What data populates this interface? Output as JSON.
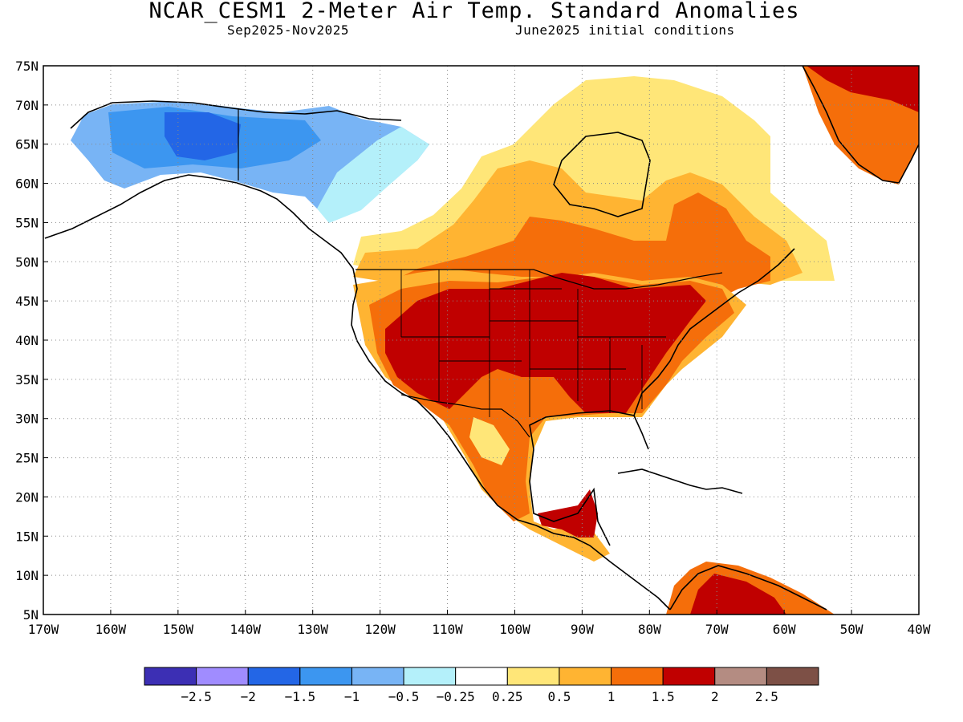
{
  "title": "NCAR_CESM1 2-Meter Air Temp. Standard Anomalies",
  "subtitle_left": "Sep2025-Nov2025",
  "subtitle_right": "June2025 initial conditions",
  "map": {
    "lon_range": [
      -170,
      -40
    ],
    "lat_range": [
      5,
      75
    ],
    "lat_ticks": [
      "75N",
      "70N",
      "65N",
      "60N",
      "55N",
      "50N",
      "45N",
      "40N",
      "35N",
      "30N",
      "25N",
      "20N",
      "15N",
      "10N",
      "5N"
    ],
    "lon_ticks": [
      "170W",
      "160W",
      "150W",
      "140W",
      "130W",
      "120W",
      "110W",
      "100W",
      "90W",
      "80W",
      "70W",
      "60W",
      "50W",
      "40W"
    ],
    "grid": "dotted"
  },
  "legend": {
    "colors": [
      "#3c2fb4",
      "#a08cff",
      "#2366e6",
      "#3c96f0",
      "#78b4f5",
      "#b4f0fa",
      "#ffffff",
      "#ffe678",
      "#ffb432",
      "#f56e0a",
      "#c00000",
      "#b48c82",
      "#7d5046"
    ],
    "labels": [
      "-2.5",
      "-2",
      "-1.5",
      "-1",
      "-0.5",
      "-0.25",
      "0.25",
      "0.5",
      "1",
      "1.5",
      "2",
      "2.5"
    ]
  }
}
